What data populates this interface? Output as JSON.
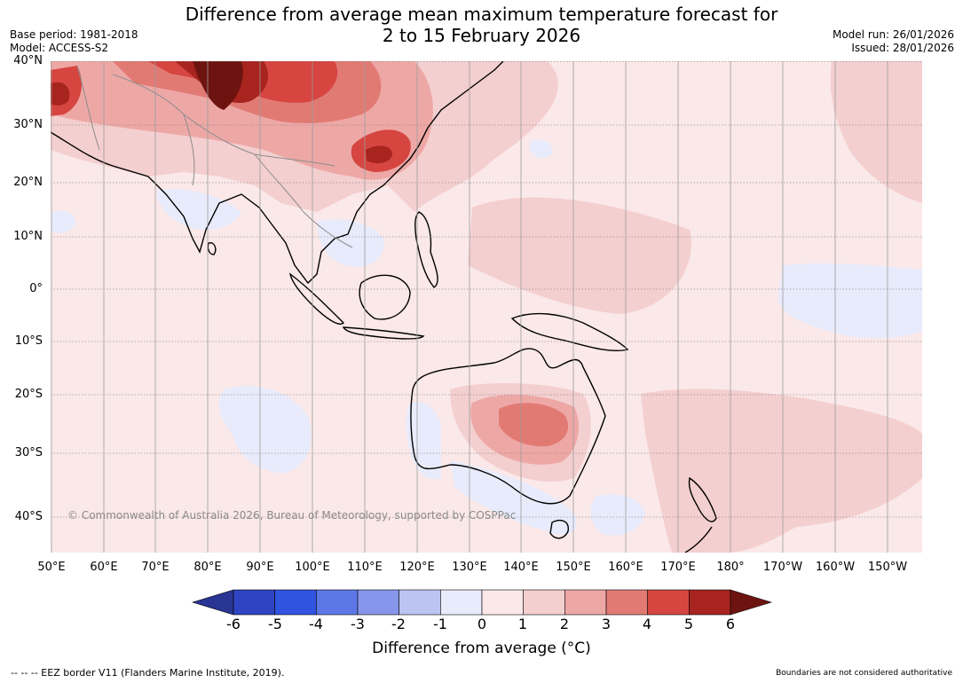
{
  "title": {
    "line1": "Difference from average mean maximum temperature forecast for",
    "line2": "2 to 15 February 2026"
  },
  "meta": {
    "base_period": "Base period: 1981-2018",
    "model": "Model: ACCESS-S2",
    "model_run": "Model run: 26/01/2026",
    "issued": "Issued: 28/01/2026"
  },
  "map": {
    "lat_labels": [
      "40°N",
      "30°N",
      "20°N",
      "10°N",
      "0°",
      "10°S",
      "20°S",
      "30°S",
      "40°S"
    ],
    "lon_labels": [
      "50°E",
      "60°E",
      "70°E",
      "80°E",
      "90°E",
      "100°E",
      "110°E",
      "120°E",
      "130°E",
      "140°E",
      "150°E",
      "160°E",
      "170°E",
      "180°",
      "170°W",
      "160°W",
      "150°W"
    ],
    "copyright": "© Commonwealth of Australia 2026, Bureau of Meteorology, supported by COSPPac"
  },
  "colorbar": {
    "ticks": [
      "-6",
      "-5",
      "-4",
      "-3",
      "-2",
      "-1",
      "0",
      "1",
      "2",
      "3",
      "4",
      "5",
      "6"
    ],
    "colors": [
      "#283593",
      "#2e44c2",
      "#3053e0",
      "#5d78e6",
      "#8796ea",
      "#bcc4f2",
      "#e8ebfb",
      "#fbe8e8",
      "#f4cfcf",
      "#eda8a6",
      "#e27a74",
      "#d64540",
      "#a7241f",
      "#6e1410"
    ],
    "label": "Difference from average (°C)"
  },
  "footer": {
    "eez_note": "--  --  -- EEZ border V11 (Flanders Marine Institute, 2019).",
    "boundaries_note": "Boundaries are not considered authoritative"
  }
}
